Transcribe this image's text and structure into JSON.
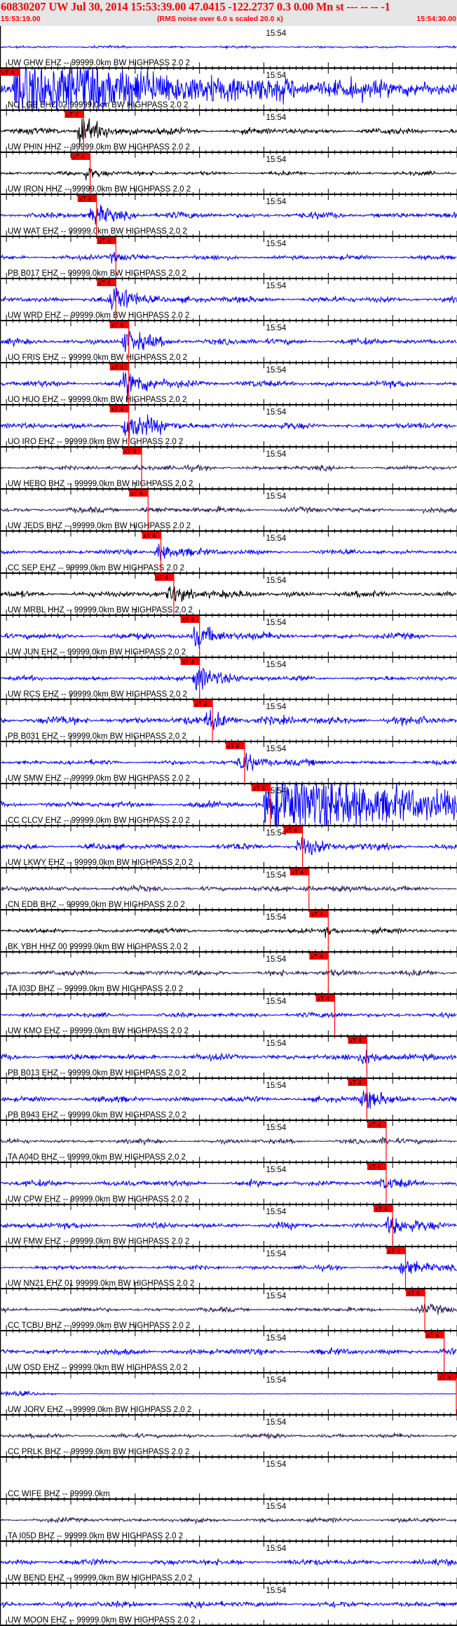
{
  "header": {
    "title": "60830207 UW Jul 30, 2014 15:53:39.00   47.0415 -122.2737  0.3 0.00 Mn st --- -- --  -1",
    "start_time": "15:53:19.00",
    "note": "(RMS noise over 6.0 s scaled 20.0 x)",
    "end_time": "15:54:30.00"
  },
  "chart_data": {
    "type": "line",
    "x_axis": {
      "start": "15:53:19.00",
      "end": "15:54:30.00",
      "major_tick_s": 10,
      "minor_tick_s": 1,
      "tick_label": "15:54"
    },
    "pick_label": "xT 4",
    "colors": {
      "blue": "#0000ff",
      "black": "#000000",
      "purple": "#2b1a5c",
      "pick": "#ff0000",
      "header_bg": "#e6e6e6"
    },
    "traces": [
      {
        "label": "UW GHW EHZ -- 99999.0km BW  HIGHPASS  2.0  2",
        "color": "#0000ff",
        "pick": null
      },
      {
        "label": "NC LGB EHZ 02 99999.0km BW  HIGHPASS  2.0  2",
        "color": "#0000ff",
        "pick": "15:53:22.0"
      },
      {
        "label": "UW PHIN HHZ -- 99999.0km BW  HIGHPASS  2.0  2",
        "color": "#000000",
        "pick": "15:53:32.0"
      },
      {
        "label": "UW IRON HHZ -- 99999.0km BW  HIGHPASS  2.0  2",
        "color": "#000000",
        "pick": "15:53:33.0"
      },
      {
        "label": "UW WAT EHZ -- 99999.0km BW  HIGHPASS  2.0  2",
        "color": "#0000ff",
        "pick": "15:53:34.0"
      },
      {
        "label": "PB B017 EHZ -- 99999.0km BW  HIGHPASS  2.0  2",
        "color": "#0000ff",
        "pick": "15:53:37.0"
      },
      {
        "label": "UW WRD EHZ -- 99999.0km BW  HIGHPASS  2.0  2",
        "color": "#0000ff",
        "pick": "15:53:37.0"
      },
      {
        "label": "UO FRIS EHZ -- 99999.0km BW  HIGHPASS  2.0  2",
        "color": "#0000ff",
        "pick": "15:53:39.0"
      },
      {
        "label": "UO HUO EHZ -- 99999.0km BW  HIGHPASS  2.0  2",
        "color": "#0000ff",
        "pick": "15:53:39.0"
      },
      {
        "label": "UO IRO EHZ -- 99999.0km BW  HIGHPASS  2.0  2",
        "color": "#0000ff",
        "pick": "15:53:39.0"
      },
      {
        "label": "UW HEBO BHZ -- 99999.0km BW  HIGHPASS  2.0  2",
        "color": "#2b1a5c",
        "pick": "15:53:41.0"
      },
      {
        "label": "UW JEDS BHZ -- 99999.0km BW  HIGHPASS  2.0  2",
        "color": "#2b1a5c",
        "pick": "15:53:42.0"
      },
      {
        "label": "CC SEP EHZ -- 99999.0km BW  HIGHPASS  2.0  2",
        "color": "#0000ff",
        "pick": "15:53:44.0"
      },
      {
        "label": "UW MRBL HHZ -- 99999.0km BW  HIGHPASS  2.0  2",
        "color": "#000000",
        "pick": "15:53:46.0"
      },
      {
        "label": "UW JUN EHZ -- 99999.0km BW  HIGHPASS  2.0  2",
        "color": "#0000ff",
        "pick": "15:53:50.0"
      },
      {
        "label": "UW RCS EHZ -- 99999.0km BW  HIGHPASS  2.0  2",
        "color": "#0000ff",
        "pick": "15:53:50.0"
      },
      {
        "label": "PB B031 EHZ -- 99999.0km BW  HIGHPASS  2.0  2",
        "color": "#0000ff",
        "pick": "15:53:52.0"
      },
      {
        "label": "UW SMW EHZ -- 99999.0km BW  HIGHPASS  2.0  2",
        "color": "#0000ff",
        "pick": "15:53:57.0"
      },
      {
        "label": "CC CLCV EHZ -- 99999.0km BW  HIGHPASS  2.0  2",
        "color": "#0000ff",
        "pick": "15:54:01.0"
      },
      {
        "label": "UW LKWY EHZ -- 99999.0km BW  HIGHPASS  2.0  2",
        "color": "#0000ff",
        "pick": "15:54:06.0"
      },
      {
        "label": "CN EDB BHZ -- 99999.0km BW  HIGHPASS  2.0  2",
        "color": "#2b1a5c",
        "pick": "15:54:07.0"
      },
      {
        "label": "BK YBH HHZ 00 99999.0km BW  HIGHPASS  2.0  2",
        "color": "#000000",
        "pick": "15:54:10.0"
      },
      {
        "label": "TA I03D BHZ -- 99999.0km BW  HIGHPASS  2.0  2",
        "color": "#2b1a5c",
        "pick": "15:54:10.0"
      },
      {
        "label": "UW KMO EHZ -- 99999.0km BW  HIGHPASS  2.0  2",
        "color": "#0000ff",
        "pick": "15:54:11.0"
      },
      {
        "label": "PB B013 EHZ -- 99999.0km BW  HIGHPASS  2.0  2",
        "color": "#0000ff",
        "pick": "15:54:16.0"
      },
      {
        "label": "PB B943 EHZ -- 99999.0km BW  HIGHPASS  2.0  2",
        "color": "#0000ff",
        "pick": "15:54:16.0"
      },
      {
        "label": "TA A04D BHZ -- 99999.0km BW  HIGHPASS  2.0  2",
        "color": "#2b1a5c",
        "pick": "15:54:19.0"
      },
      {
        "label": "UW CPW EHZ -- 99999.0km BW  HIGHPASS  2.0  2",
        "color": "#0000ff",
        "pick": "15:54:19.0"
      },
      {
        "label": "UW FMW EHZ -- 99999.0km BW  HIGHPASS  2.0  2",
        "color": "#0000ff",
        "pick": "15:54:20.0"
      },
      {
        "label": "UW NN21 EHZ 01 99999.0km BW  HIGHPASS  2.0  2",
        "color": "#0000ff",
        "pick": "15:54:22.0"
      },
      {
        "label": "CC TCBU BHZ -- 99999.0km BW  HIGHPASS  2.0  2",
        "color": "#2b1a5c",
        "pick": "15:54:25.0"
      },
      {
        "label": "UW OSD EHZ -- 99999.0km BW  HIGHPASS  2.0  2",
        "color": "#0000ff",
        "pick": "15:54:28.0"
      },
      {
        "label": "UW JORV EHZ -- 99999.0km BW  HIGHPASS  2.0  2",
        "color": "#0000ff",
        "pick": "15:54:30.0"
      },
      {
        "label": "CC PRLK BHZ -- 99999.0km BW  HIGHPASS  2.0  2",
        "color": "#2b1a5c",
        "pick": null
      },
      {
        "label": "CC WIFE BHZ -- 99999.0km",
        "color": "#0000ff",
        "pick": null
      },
      {
        "label": "TA I05D BHZ -- 99999.0km BW  HIGHPASS  2.0  2",
        "color": "#2b1a5c",
        "pick": null
      },
      {
        "label": "UW BEND EHZ -- 99999.0km BW  HIGHPASS  2.0  2",
        "color": "#0000ff",
        "pick": null
      },
      {
        "label": "UW MOON EHZ -- 99999.0km BW  HIGHPASS  2.0  2",
        "color": "#0000ff",
        "pick": null
      }
    ]
  }
}
